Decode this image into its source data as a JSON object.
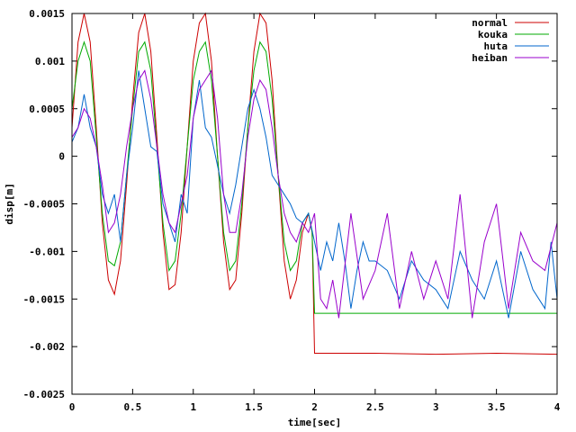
{
  "chart_data": {
    "type": "line",
    "title": "",
    "xlabel": "time[sec]",
    "ylabel": "disp[m]",
    "xlim": [
      0,
      4
    ],
    "ylim": [
      -0.0025,
      0.0015
    ],
    "x_ticks": [
      0,
      0.5,
      1,
      1.5,
      2,
      2.5,
      3,
      3.5,
      4
    ],
    "x_tick_labels": [
      "0",
      "0.5",
      "1",
      "1.5",
      "2",
      "2.5",
      "3",
      "3.5",
      "4"
    ],
    "y_ticks": [
      -0.0025,
      -0.002,
      -0.0015,
      -0.001,
      -0.0005,
      0,
      0.0005,
      0.001,
      0.0015
    ],
    "y_tick_labels": [
      "-0.0025",
      "-0.002",
      "-0.0015",
      "-0.001",
      "-0.0005",
      "0",
      "0.0005",
      "0.001",
      "0.0015"
    ],
    "legend_position": "top-right",
    "grid": false,
    "series": [
      {
        "name": "normal",
        "color": "#cc0000",
        "x": [
          0.0,
          0.05,
          0.1,
          0.15,
          0.2,
          0.25,
          0.3,
          0.35,
          0.4,
          0.45,
          0.5,
          0.55,
          0.6,
          0.65,
          0.7,
          0.75,
          0.8,
          0.85,
          0.9,
          0.95,
          1.0,
          1.05,
          1.1,
          1.15,
          1.2,
          1.25,
          1.3,
          1.35,
          1.4,
          1.45,
          1.5,
          1.55,
          1.6,
          1.65,
          1.7,
          1.75,
          1.8,
          1.85,
          1.9,
          1.95,
          1.98,
          2.0,
          2.5,
          3.0,
          3.5,
          4.0
        ],
        "y": [
          0.0003,
          0.0012,
          0.0015,
          0.0012,
          0.0003,
          -0.0007,
          -0.0013,
          -0.00145,
          -0.0011,
          -0.0003,
          0.0006,
          0.0013,
          0.0015,
          0.0011,
          0.0002,
          -0.0008,
          -0.0014,
          -0.00135,
          -0.0008,
          0.0001,
          0.001,
          0.0014,
          0.0015,
          0.001,
          0.0,
          -0.0009,
          -0.0014,
          -0.0013,
          -0.0006,
          0.0003,
          0.0011,
          0.0015,
          0.0014,
          0.0008,
          -0.0002,
          -0.0011,
          -0.0015,
          -0.0013,
          -0.0008,
          -0.0006,
          -0.0008,
          -0.00207,
          -0.00207,
          -0.00208,
          -0.00207,
          -0.00208
        ]
      },
      {
        "name": "kouka",
        "color": "#00aa00",
        "x": [
          0.0,
          0.05,
          0.1,
          0.15,
          0.2,
          0.25,
          0.3,
          0.35,
          0.4,
          0.45,
          0.5,
          0.55,
          0.6,
          0.65,
          0.7,
          0.75,
          0.8,
          0.85,
          0.9,
          0.95,
          1.0,
          1.05,
          1.1,
          1.15,
          1.2,
          1.25,
          1.3,
          1.35,
          1.4,
          1.45,
          1.5,
          1.55,
          1.6,
          1.65,
          1.7,
          1.75,
          1.8,
          1.85,
          1.9,
          1.95,
          1.98,
          2.0,
          2.5,
          3.0,
          3.5,
          4.0
        ],
        "y": [
          0.0005,
          0.001,
          0.0012,
          0.001,
          0.0002,
          -0.0006,
          -0.0011,
          -0.00115,
          -0.0009,
          -0.0002,
          0.0005,
          0.0011,
          0.0012,
          0.0009,
          0.0001,
          -0.0007,
          -0.0012,
          -0.0011,
          -0.0006,
          0.0001,
          0.0008,
          0.0011,
          0.0012,
          0.0008,
          0.0,
          -0.0008,
          -0.0012,
          -0.0011,
          -0.0005,
          0.0003,
          0.0009,
          0.0012,
          0.0011,
          0.0006,
          -0.0002,
          -0.0009,
          -0.0012,
          -0.0011,
          -0.0007,
          -0.0006,
          -0.0008,
          -0.00165,
          -0.00165,
          -0.00165,
          -0.00165,
          -0.00165
        ]
      },
      {
        "name": "huta",
        "color": "#0066cc",
        "x": [
          0.0,
          0.05,
          0.1,
          0.15,
          0.2,
          0.25,
          0.3,
          0.35,
          0.4,
          0.45,
          0.5,
          0.55,
          0.6,
          0.65,
          0.7,
          0.75,
          0.8,
          0.85,
          0.9,
          0.95,
          1.0,
          1.05,
          1.1,
          1.15,
          1.2,
          1.25,
          1.3,
          1.35,
          1.4,
          1.45,
          1.5,
          1.55,
          1.6,
          1.65,
          1.7,
          1.75,
          1.8,
          1.85,
          1.9,
          1.95,
          2.0,
          2.05,
          2.1,
          2.15,
          2.2,
          2.25,
          2.3,
          2.35,
          2.4,
          2.45,
          2.5,
          2.6,
          2.7,
          2.8,
          2.9,
          3.0,
          3.1,
          3.2,
          3.3,
          3.4,
          3.5,
          3.6,
          3.7,
          3.8,
          3.9,
          3.95,
          4.0
        ],
        "y": [
          0.00015,
          0.0003,
          0.00065,
          0.0003,
          0.0001,
          -0.0004,
          -0.0006,
          -0.0004,
          -0.0009,
          -0.0002,
          0.0003,
          0.0009,
          0.0005,
          0.0001,
          5e-05,
          -0.0005,
          -0.0007,
          -0.0009,
          -0.0004,
          -0.0006,
          0.0004,
          0.0008,
          0.0003,
          0.0002,
          -0.0001,
          -0.0004,
          -0.0006,
          -0.0003,
          0.0001,
          0.0005,
          0.0007,
          0.0005,
          0.0002,
          -0.0002,
          -0.0003,
          -0.0004,
          -0.0005,
          -0.00065,
          -0.0007,
          -0.0006,
          -0.0009,
          -0.0012,
          -0.0009,
          -0.0011,
          -0.0007,
          -0.0011,
          -0.0016,
          -0.0012,
          -0.0009,
          -0.0011,
          -0.0011,
          -0.0012,
          -0.0015,
          -0.0011,
          -0.0013,
          -0.0014,
          -0.0016,
          -0.001,
          -0.0013,
          -0.0015,
          -0.0011,
          -0.0017,
          -0.001,
          -0.0014,
          -0.0016,
          -0.0009,
          -0.0015
        ]
      },
      {
        "name": "heiban",
        "color": "#9900cc",
        "x": [
          0.0,
          0.05,
          0.1,
          0.15,
          0.2,
          0.25,
          0.3,
          0.35,
          0.4,
          0.45,
          0.5,
          0.55,
          0.6,
          0.65,
          0.7,
          0.75,
          0.8,
          0.85,
          0.9,
          0.95,
          1.0,
          1.05,
          1.1,
          1.15,
          1.2,
          1.25,
          1.3,
          1.35,
          1.4,
          1.45,
          1.5,
          1.55,
          1.6,
          1.65,
          1.7,
          1.75,
          1.8,
          1.85,
          1.9,
          1.95,
          2.0,
          2.05,
          2.1,
          2.15,
          2.2,
          2.3,
          2.4,
          2.5,
          2.6,
          2.7,
          2.8,
          2.9,
          3.0,
          3.1,
          3.2,
          3.3,
          3.4,
          3.5,
          3.6,
          3.7,
          3.8,
          3.9,
          4.0
        ],
        "y": [
          0.0002,
          0.0003,
          0.0005,
          0.0004,
          0.0001,
          -0.0003,
          -0.0008,
          -0.0007,
          -0.0004,
          0.0001,
          0.0005,
          0.0008,
          0.0009,
          0.0006,
          0.0001,
          -0.0004,
          -0.0007,
          -0.0008,
          -0.0005,
          -0.0002,
          0.0004,
          0.0007,
          0.0008,
          0.0009,
          0.0004,
          -0.0004,
          -0.0008,
          -0.0008,
          -0.0004,
          0.0002,
          0.0006,
          0.0008,
          0.0007,
          0.0003,
          -0.0002,
          -0.0006,
          -0.0008,
          -0.0009,
          -0.0007,
          -0.0008,
          -0.0006,
          -0.0015,
          -0.0016,
          -0.0013,
          -0.0017,
          -0.0006,
          -0.0015,
          -0.0012,
          -0.0006,
          -0.0016,
          -0.001,
          -0.0015,
          -0.0011,
          -0.0015,
          -0.0004,
          -0.0017,
          -0.0009,
          -0.0005,
          -0.0016,
          -0.0008,
          -0.0011,
          -0.0012,
          -0.0007
        ]
      }
    ]
  }
}
